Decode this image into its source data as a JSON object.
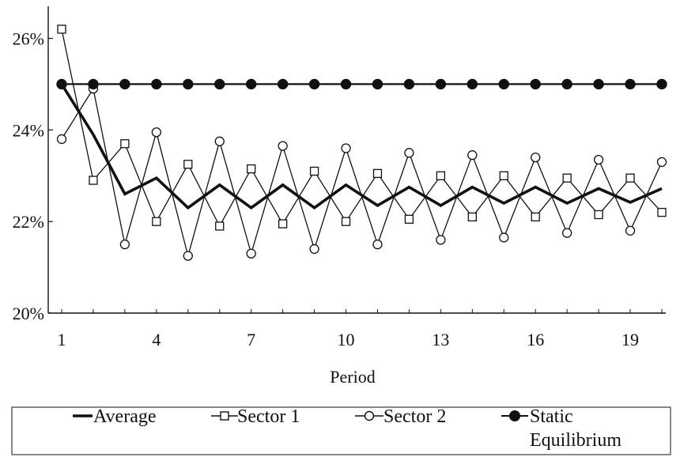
{
  "chart_data": {
    "type": "line",
    "xlabel": "Period",
    "ylabel": "",
    "x": [
      1,
      2,
      3,
      4,
      5,
      6,
      7,
      8,
      9,
      10,
      11,
      12,
      13,
      14,
      15,
      16,
      17,
      18,
      19,
      20
    ],
    "x_tick_labels": [
      "1",
      "4",
      "7",
      "10",
      "13",
      "16",
      "19"
    ],
    "x_tick_values": [
      1,
      4,
      7,
      10,
      13,
      16,
      19
    ],
    "ylim": [
      20,
      26.7
    ],
    "y_ticks": [
      20,
      22,
      24,
      26
    ],
    "y_tick_labels": [
      "20%",
      "22%",
      "24%",
      "26%"
    ],
    "grid": false,
    "legend_position": "bottom",
    "series": [
      {
        "name": "Average",
        "marker": "none",
        "style": "thick",
        "values": [
          25.0,
          23.9,
          22.6,
          22.95,
          22.3,
          22.8,
          22.3,
          22.8,
          22.3,
          22.8,
          22.35,
          22.75,
          22.35,
          22.75,
          22.4,
          22.75,
          22.4,
          22.72,
          22.42,
          22.72
        ]
      },
      {
        "name": "Sector 1",
        "marker": "square",
        "style": "thin",
        "values": [
          26.2,
          22.9,
          23.7,
          22.0,
          23.25,
          21.9,
          23.15,
          21.95,
          23.1,
          22.0,
          23.05,
          22.05,
          23.0,
          22.1,
          23.0,
          22.1,
          22.95,
          22.15,
          22.95,
          22.2
        ]
      },
      {
        "name": "Sector 2",
        "marker": "circle",
        "style": "thin",
        "values": [
          23.8,
          24.9,
          21.5,
          23.95,
          21.25,
          23.75,
          21.3,
          23.65,
          21.4,
          23.6,
          21.5,
          23.5,
          21.6,
          23.45,
          21.65,
          23.4,
          21.75,
          23.35,
          21.8,
          23.3
        ]
      },
      {
        "name": "Static Equilibrium",
        "marker": "filled-circle",
        "style": "medium",
        "values": [
          25,
          25,
          25,
          25,
          25,
          25,
          25,
          25,
          25,
          25,
          25,
          25,
          25,
          25,
          25,
          25,
          25,
          25,
          25,
          25
        ]
      }
    ]
  },
  "legend": {
    "items": [
      {
        "line1": "Average",
        "line2": ""
      },
      {
        "line1": "Sector 1",
        "line2": ""
      },
      {
        "line1": "Sector 2",
        "line2": ""
      },
      {
        "line1": "Static",
        "line2": "Equilibrium"
      }
    ]
  },
  "colors": {
    "ink": "#111111",
    "background": "#ffffff"
  }
}
